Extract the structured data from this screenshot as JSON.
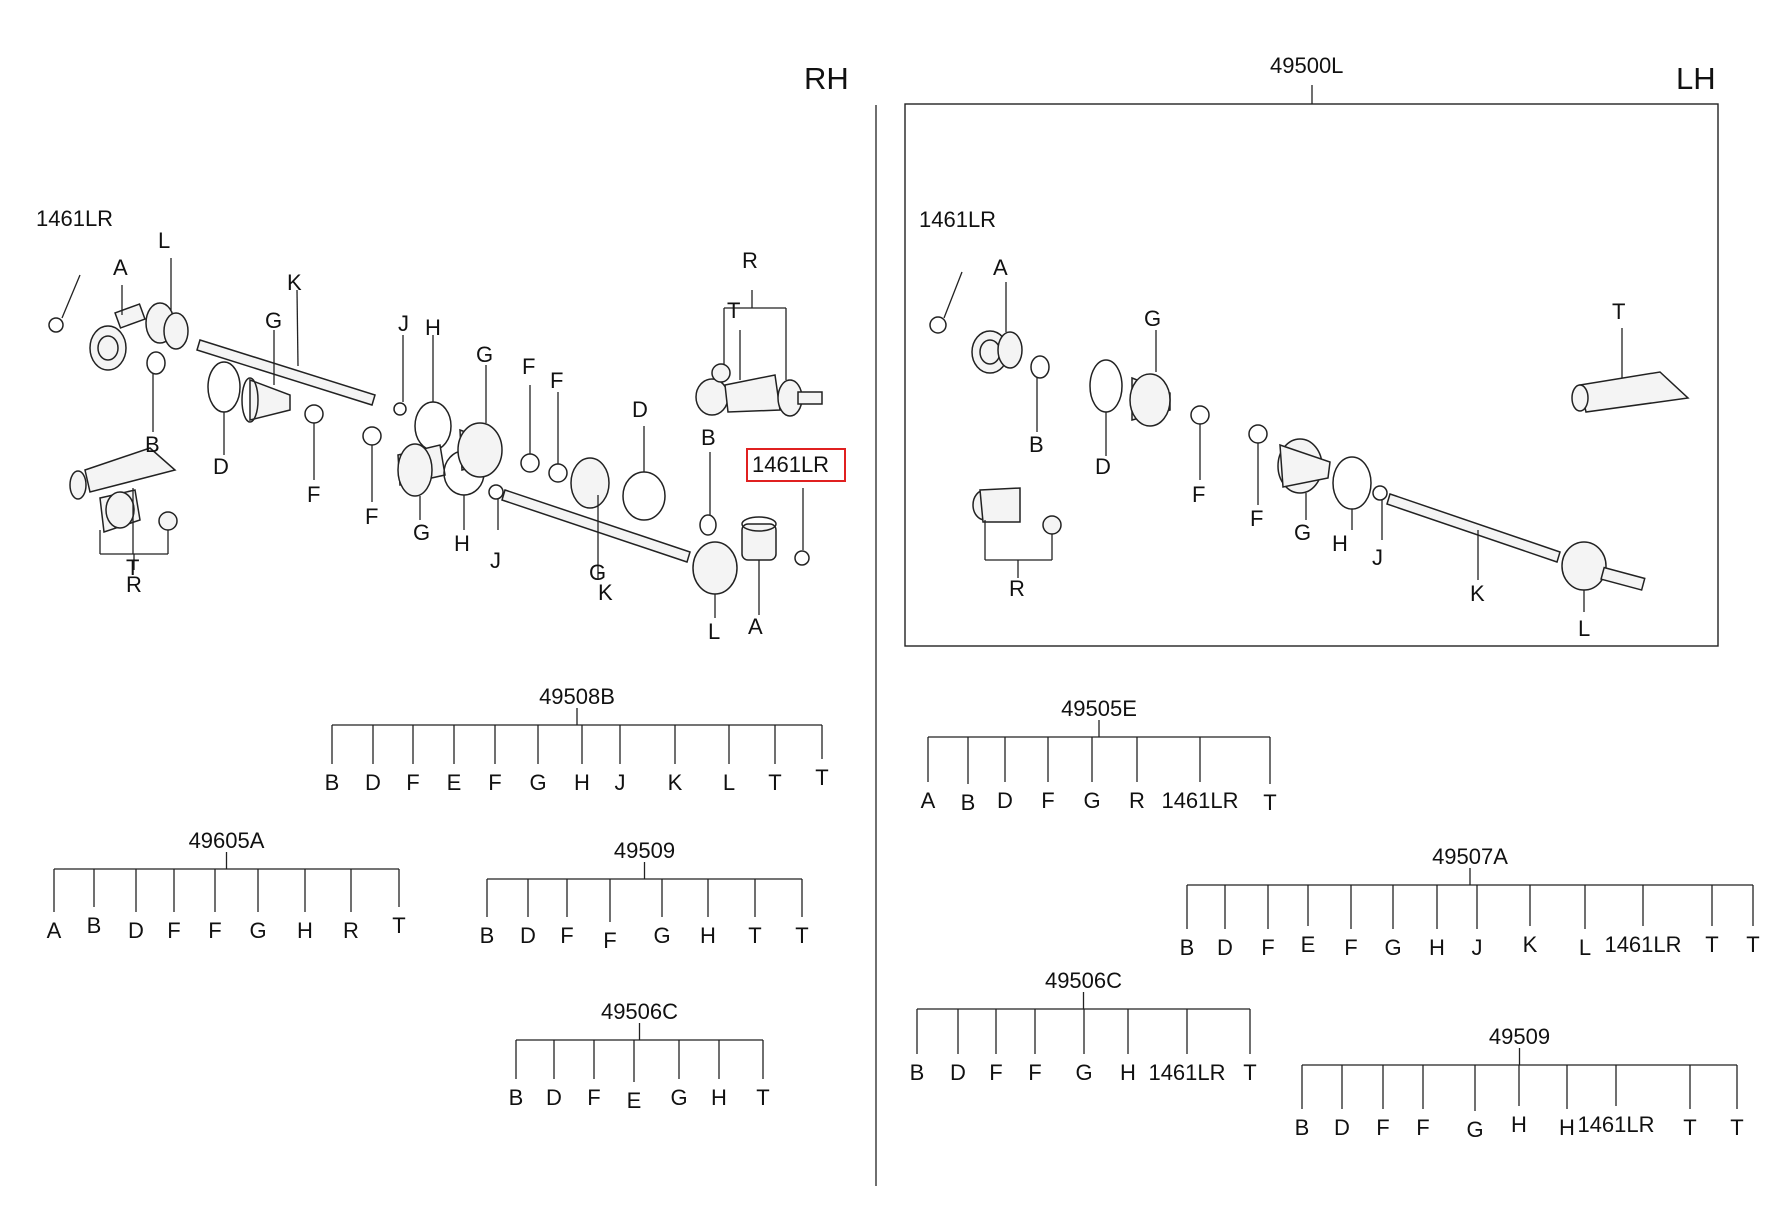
{
  "sides": {
    "rh": "RH",
    "lh": "LH"
  },
  "assembly_lh": "49500L",
  "highlight": {
    "label": "1461LR",
    "color": "#e02020"
  },
  "rh_callouts": {
    "c1461_top": "1461LR",
    "L1": "L",
    "A1": "A",
    "K": "K",
    "G1": "G",
    "J1": "J",
    "H1": "H",
    "G2": "G",
    "F1": "F",
    "F2": "F",
    "D1": "D",
    "R1": "R",
    "T1": "T",
    "B1": "B",
    "D2": "D",
    "F3": "F",
    "F4": "F",
    "B2": "B",
    "T2": "T",
    "R2": "R",
    "G3": "G",
    "H2": "H",
    "J2": "J",
    "G4": "G",
    "K2": "K",
    "L2": "L",
    "A2": "A"
  },
  "lh_callouts": {
    "c1461": "1461LR",
    "A": "A",
    "G": "G",
    "T": "T",
    "B": "B",
    "D": "D",
    "F1": "F",
    "F2": "F",
    "G2": "G",
    "H": "H",
    "J": "J",
    "R": "R",
    "K": "K",
    "L": "L"
  },
  "kits": {
    "k49508B": {
      "code": "49508B",
      "items": [
        "B",
        "D",
        "F",
        "E",
        "F",
        "G",
        "H",
        "J",
        "K",
        "L",
        "T",
        "T"
      ]
    },
    "k49605A": {
      "code": "49605A",
      "items": [
        "A",
        "B",
        "D",
        "F",
        "F",
        "G",
        "H",
        "R",
        "T"
      ]
    },
    "k49509a": {
      "code": "49509",
      "items": [
        "B",
        "D",
        "F",
        "F",
        "G",
        "H",
        "T",
        "T"
      ]
    },
    "k49506Ca": {
      "code": "49506C",
      "items": [
        "B",
        "D",
        "F",
        "E",
        "G",
        "H",
        "T"
      ]
    },
    "k49505E": {
      "code": "49505E",
      "items": [
        "A",
        "B",
        "D",
        "F",
        "G",
        "R",
        "1461LR",
        "T"
      ]
    },
    "k49507A": {
      "code": "49507A",
      "items": [
        "B",
        "D",
        "F",
        "E",
        "F",
        "G",
        "H",
        "J",
        "K",
        "L",
        "1461LR",
        "T",
        "T"
      ]
    },
    "k49506Cb": {
      "code": "49506C",
      "items": [
        "B",
        "D",
        "F",
        "F",
        "G",
        "H",
        "1461LR",
        "T"
      ]
    },
    "k49509b": {
      "code": "49509",
      "items": [
        "B",
        "D",
        "F",
        "F",
        "G",
        "H",
        "H",
        "1461LR",
        "T",
        "T"
      ]
    }
  }
}
